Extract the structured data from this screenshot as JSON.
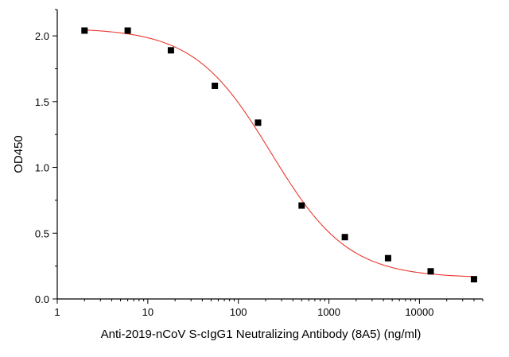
{
  "chart_data": {
    "type": "scatter",
    "title": "",
    "xlabel": "Anti-2019-nCoV S-cIgG1 Neutralizing Antibody (8A5) (ng/ml)",
    "ylabel": "OD450",
    "x_scale": "log",
    "xlim": [
      1,
      50000
    ],
    "ylim": [
      0,
      2.2
    ],
    "x_ticks": [
      1,
      10,
      100,
      1000,
      10000
    ],
    "x_tick_labels": [
      "1",
      "10",
      "100",
      "1000",
      "10000"
    ],
    "y_ticks": [
      0,
      0.5,
      1.0,
      1.5,
      2.0
    ],
    "y_tick_labels": [
      "0.0",
      "0.5",
      "1.0",
      "1.5",
      "2.0"
    ],
    "grid": false,
    "series": [
      {
        "marker": "square",
        "color": "#000000",
        "x": [
          2,
          6,
          18,
          55,
          165,
          500,
          1500,
          4500,
          13300,
          40000
        ],
        "y": [
          2.04,
          2.04,
          1.89,
          1.62,
          1.34,
          0.71,
          0.47,
          0.31,
          0.21,
          0.15
        ]
      },
      {
        "type": "line",
        "color": "#e8392f",
        "curve": "4PL fit",
        "fit_params": {
          "top": 2.06,
          "bottom": 0.16,
          "ec50": 230,
          "hill": 1.02
        }
      }
    ]
  }
}
